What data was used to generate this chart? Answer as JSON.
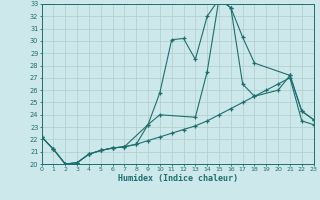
{
  "bg_color": "#cce8ea",
  "grid_color": "#b0cccc",
  "line_color": "#1e6e6e",
  "xlabel": "Humidex (Indice chaleur)",
  "xlim": [
    0,
    23
  ],
  "ylim": [
    20,
    33
  ],
  "xticks": [
    0,
    1,
    2,
    3,
    4,
    5,
    6,
    7,
    8,
    9,
    10,
    11,
    12,
    13,
    14,
    15,
    16,
    17,
    18,
    19,
    20,
    21,
    22,
    23
  ],
  "yticks": [
    20,
    21,
    22,
    23,
    24,
    25,
    26,
    27,
    28,
    29,
    30,
    31,
    32,
    33
  ],
  "line1_x": [
    0,
    1,
    2,
    3,
    4,
    5,
    6,
    7,
    8,
    9,
    10,
    11,
    12,
    13,
    14,
    15,
    16,
    17,
    18,
    21,
    22,
    23
  ],
  "line1_y": [
    22.2,
    21.2,
    20.0,
    20.1,
    20.8,
    21.1,
    21.3,
    21.4,
    21.6,
    23.2,
    25.8,
    30.1,
    30.2,
    28.5,
    32.0,
    33.4,
    32.7,
    30.3,
    28.2,
    27.2,
    24.3,
    23.6
  ],
  "line2_x": [
    0,
    1,
    2,
    3,
    4,
    5,
    6,
    7,
    9,
    10,
    13,
    14,
    15,
    16,
    17,
    18,
    20,
    21,
    22,
    23
  ],
  "line2_y": [
    22.2,
    21.2,
    20.0,
    20.1,
    20.8,
    21.1,
    21.3,
    21.4,
    23.2,
    24.0,
    23.8,
    27.5,
    33.4,
    32.7,
    26.5,
    25.5,
    26.0,
    27.2,
    24.3,
    23.6
  ],
  "line3_x": [
    0,
    1,
    2,
    3,
    4,
    5,
    6,
    7,
    8,
    9,
    10,
    11,
    12,
    13,
    14,
    15,
    16,
    17,
    18,
    19,
    20,
    21,
    22,
    23
  ],
  "line3_y": [
    22.2,
    21.2,
    20.0,
    20.1,
    20.8,
    21.1,
    21.3,
    21.4,
    21.6,
    21.9,
    22.2,
    22.5,
    22.8,
    23.1,
    23.5,
    24.0,
    24.5,
    25.0,
    25.5,
    26.0,
    26.5,
    27.0,
    23.5,
    23.2
  ]
}
